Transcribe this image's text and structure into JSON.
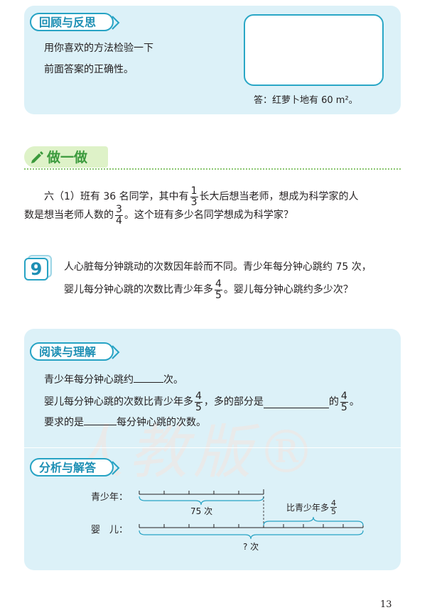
{
  "review": {
    "tag": "回顾与反思",
    "line1": "用你喜欢的方法检验一下",
    "line2": "前面答案的正确性。",
    "answer": "答：红萝卜地有 60 m²。"
  },
  "doit": {
    "label": "做一做",
    "line1_a": "六（1）班有 36 名同学，其中有",
    "frac1_n": "1",
    "frac1_d": "3",
    "line1_b": "长大后想当老师，想成为科学家的人",
    "line2_a": "数是想当老师人数的",
    "frac2_n": "3",
    "frac2_d": "4",
    "line2_b": "。这个班有多少名同学想成为科学家？"
  },
  "problem9": {
    "number": "9",
    "line1": "人心脏每分钟跳动的次数因年龄而不同。青少年每分钟心跳约 75 次，",
    "line2_a": "婴儿每分钟心跳的次数比青少年多",
    "frac_n": "4",
    "frac_d": "5",
    "line2_b": "。婴儿每分钟心跳约多少次？"
  },
  "read": {
    "tag": "阅读与理解",
    "line1_a": "青少年每分钟心跳约",
    "line1_b": "次。",
    "line2_a": "婴儿每分钟心跳的次数比青少年多",
    "frac_n": "4",
    "frac_d": "5",
    "line2_b": "，多的部分是",
    "line2_c": "的",
    "frac2_n": "4",
    "frac2_d": "5",
    "line2_d": "。",
    "line3_a": "要求的是",
    "line3_b": "每分钟心跳的次数。"
  },
  "analysis": {
    "tag": "分析与解答",
    "teen_label": "青少年：",
    "baby_label": "婴　儿：",
    "teen_count": "75 次",
    "more_label": "比青少年多",
    "more_frac_n": "4",
    "more_frac_d": "5",
    "unknown": "? 次"
  },
  "watermark": "人教版®",
  "page_number": "13",
  "colors": {
    "box_bg": "#dcf1f8",
    "tag_border": "#27a3c4",
    "tag_text": "#1d8fb4",
    "doit_green": "#3b9a3c"
  }
}
